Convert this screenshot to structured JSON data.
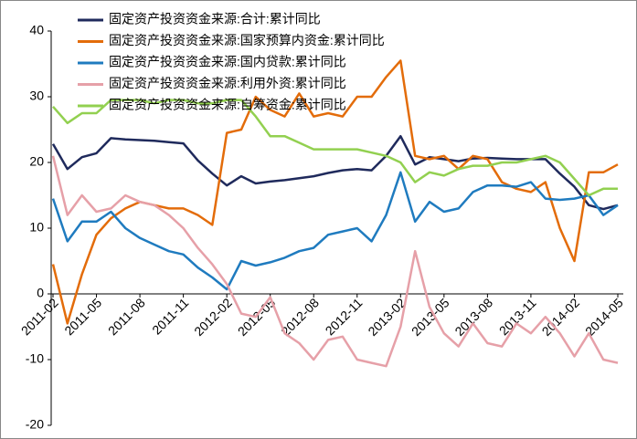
{
  "chart_data": {
    "type": "line",
    "categories": [
      "2011-02",
      null,
      null,
      "2011-05",
      null,
      null,
      "2011-08",
      null,
      null,
      "2011-11",
      null,
      null,
      "2012-02",
      null,
      null,
      "2012-05",
      null,
      null,
      "2012-08",
      null,
      null,
      "2012-11",
      null,
      null,
      "2013-02",
      null,
      null,
      "2013-05",
      null,
      null,
      "2013-08",
      null,
      null,
      "2013-11",
      null,
      null,
      "2014-02",
      null,
      null,
      "2014-05"
    ],
    "ylim": [
      -20,
      40
    ],
    "yticks": [
      40,
      30,
      20,
      10,
      0,
      -10,
      -20
    ],
    "legend": "upper-left",
    "series": [
      {
        "name": "固定资产投资资金来源:合计:累计同比",
        "color": "#1f2a5c",
        "values": [
          22.8,
          19,
          20.8,
          21.4,
          23.7,
          23.5,
          23.4,
          23.3,
          23.1,
          22.9,
          20.3,
          18.3,
          16.5,
          17.9,
          16.8,
          17.1,
          17.3,
          17.6,
          17.9,
          18.4,
          18.8,
          19,
          18.8,
          21,
          24,
          19.7,
          20.8,
          20.5,
          20.2,
          20.6,
          20.7,
          20.6,
          20.5,
          20.5,
          20.5,
          18.3,
          16.3,
          13.5,
          12.9,
          13.5
        ]
      },
      {
        "name": "固定资产投资资金来源:国家预算内资金:累计同比",
        "color": "#e36c0a",
        "values": [
          4.5,
          -4.5,
          3,
          9,
          11.5,
          13,
          14,
          13.5,
          13,
          13,
          12,
          10.5,
          24.5,
          25,
          30,
          28,
          27,
          30.5,
          27,
          27.5,
          27,
          30,
          30,
          33,
          35.5,
          21,
          20.5,
          21,
          19,
          21,
          20.5,
          17,
          16,
          15.5,
          17,
          10,
          5,
          18.5,
          18.5,
          19.7
        ]
      },
      {
        "name": "固定资产投资资金来源:国内贷款:累计同比",
        "color": "#1f7bbf",
        "values": [
          14.5,
          8,
          11,
          11,
          12.5,
          10,
          8.5,
          7.5,
          6.5,
          6,
          4,
          2.5,
          0.7,
          5,
          4.3,
          4.8,
          5.5,
          6.5,
          7,
          9,
          9.5,
          10,
          8,
          12,
          18.5,
          11,
          14,
          12.5,
          13,
          15.5,
          16.5,
          16.5,
          16.3,
          17,
          14.5,
          14.3,
          14.5,
          15,
          12,
          13.5
        ]
      },
      {
        "name": "固定资产投资资金来源:利用外资:累计同比",
        "color": "#e6a0a8",
        "values": [
          21,
          12,
          15,
          12.5,
          13,
          15,
          14,
          13.5,
          12,
          10,
          7,
          4.5,
          1.5,
          -3,
          -3.5,
          -0.5,
          -6,
          -7.5,
          -10,
          -7,
          -6.5,
          -10,
          -10.5,
          -11,
          -5,
          6.5,
          -2,
          -6,
          -8,
          -4.5,
          -7.5,
          -8,
          -4.5,
          -6,
          -3.5,
          -6,
          -9.5,
          -6,
          -10,
          -10.5
        ]
      },
      {
        "name": "固定资产投资资金来源:自筹资金:累计同比",
        "color": "#92d050",
        "values": [
          28.5,
          26,
          27.5,
          27.5,
          29.5,
          29.5,
          29.5,
          29,
          29.5,
          29.5,
          29,
          29,
          29.5,
          29.5,
          27,
          24,
          24,
          23,
          22,
          22,
          22,
          22,
          21.5,
          21,
          20,
          17,
          18.5,
          18,
          19,
          19.5,
          19.5,
          20,
          20,
          20.5,
          21,
          20,
          17.5,
          15,
          16,
          16
        ]
      }
    ]
  }
}
